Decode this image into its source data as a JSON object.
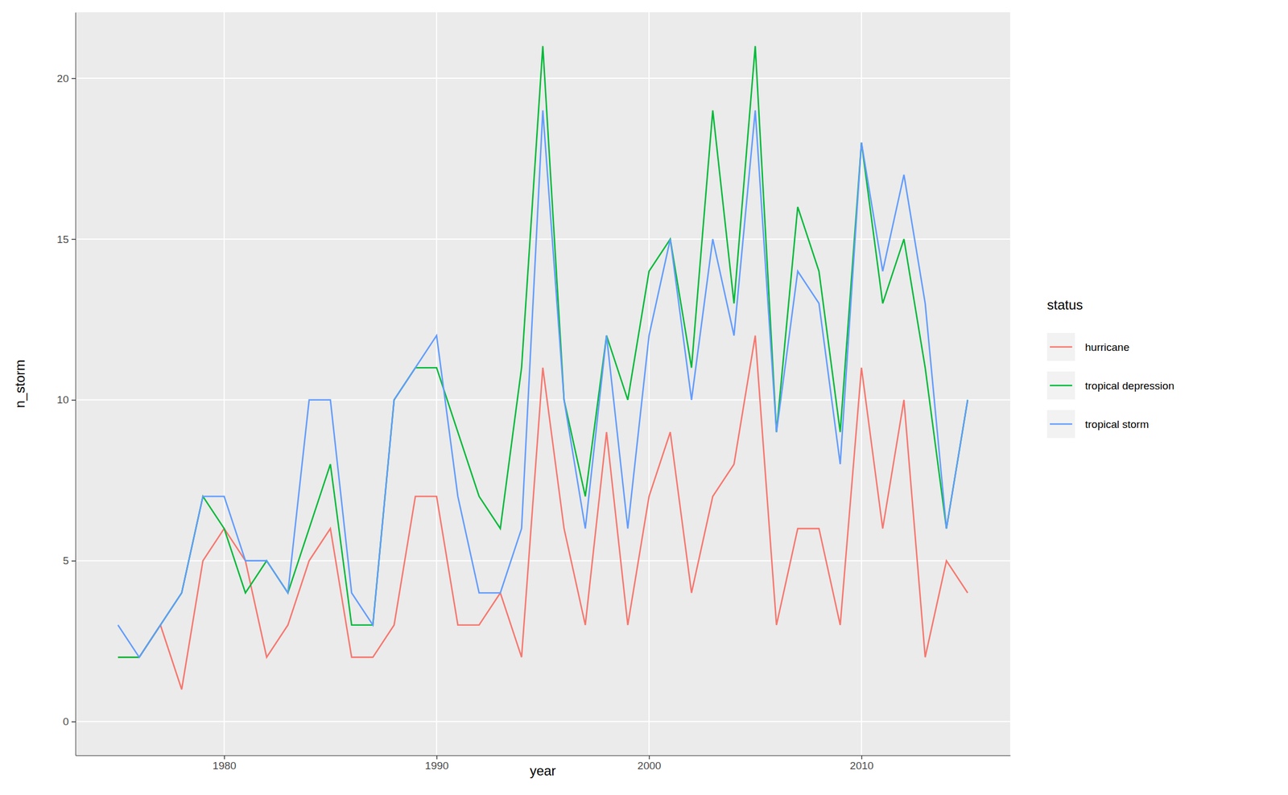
{
  "chart_data": {
    "type": "line",
    "x_label": "year",
    "y_label": "n_storm",
    "legend_title": "status",
    "legend": "right",
    "grid": true,
    "x": [
      1975,
      1976,
      1977,
      1978,
      1979,
      1980,
      1981,
      1982,
      1983,
      1984,
      1985,
      1986,
      1987,
      1988,
      1989,
      1990,
      1991,
      1992,
      1993,
      1994,
      1995,
      1996,
      1997,
      1998,
      1999,
      2000,
      2001,
      2002,
      2003,
      2004,
      2005,
      2006,
      2007,
      2008,
      2009,
      2010,
      2011,
      2012,
      2013,
      2014,
      2015
    ],
    "series": [
      {
        "name": "hurricane",
        "color": "#F8766D",
        "values": [
          2,
          2,
          3,
          1,
          5,
          6,
          5,
          2,
          3,
          5,
          6,
          2,
          2,
          3,
          7,
          7,
          3,
          3,
          4,
          2,
          11,
          6,
          3,
          9,
          3,
          7,
          9,
          4,
          7,
          8,
          12,
          3,
          6,
          6,
          3,
          11,
          6,
          10,
          2,
          5,
          4
        ]
      },
      {
        "name": "tropical depression",
        "color": "#00BA38",
        "values": [
          2,
          2,
          3,
          4,
          7,
          6,
          4,
          5,
          4,
          6,
          8,
          3,
          3,
          10,
          11,
          11,
          9,
          7,
          6,
          11,
          21,
          10,
          7,
          12,
          10,
          14,
          15,
          11,
          19,
          13,
          21,
          9,
          16,
          14,
          9,
          18,
          13,
          15,
          11,
          6,
          10
        ]
      },
      {
        "name": "tropical storm",
        "color": "#619CFF",
        "values": [
          3,
          2,
          3,
          4,
          7,
          7,
          5,
          5,
          4,
          10,
          10,
          4,
          3,
          10,
          11,
          12,
          7,
          4,
          4,
          6,
          19,
          10,
          6,
          12,
          6,
          12,
          15,
          10,
          15,
          12,
          19,
          9,
          14,
          13,
          8,
          18,
          14,
          17,
          13,
          6,
          10
        ]
      }
    ],
    "xlim": [
      1973,
      2017
    ],
    "xticks": [
      1980,
      1990,
      2000,
      2010
    ],
    "ylim": [
      -1.05,
      22.05
    ],
    "yticks": [
      0,
      5,
      10,
      15,
      20
    ]
  }
}
